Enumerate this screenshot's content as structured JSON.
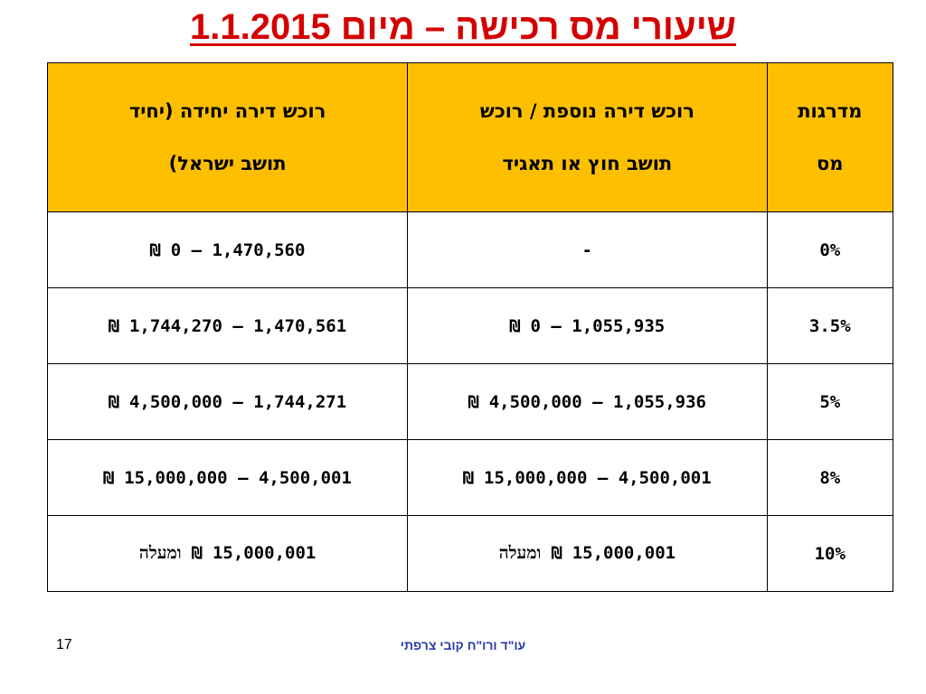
{
  "title": "שיעורי מס רכישה – מיום 1.1.2015",
  "table": {
    "headers": {
      "resident_line1": "רוכש דירה יחידה (יחיד",
      "resident_line2": "תושב ישראל)",
      "additional_line1": "רוכש דירה נוספת / רוכש",
      "additional_line2": "תושב חוץ או תאגיד",
      "bracket_line1": "מדרגות",
      "bracket_line2": "מס"
    },
    "rows": [
      {
        "resident": "1,470,560 – 0 ₪",
        "additional": "-",
        "bracket": "0%"
      },
      {
        "resident": "1,470,561 – 1,744,270 ₪",
        "additional": "1,055,935 – 0 ₪",
        "bracket": "3.5%"
      },
      {
        "resident": "1,744,271 – 4,500,000 ₪",
        "additional": "1,055,936 – 4,500,000 ₪",
        "bracket": "5%"
      },
      {
        "resident": "4,500,001 – 15,000,000 ₪",
        "additional": "4,500,001 – 15,000,000 ₪",
        "bracket": "8%"
      },
      {
        "resident": "15,000,001 ₪ ומעלה",
        "additional": "15,000,001 ₪ ומעלה",
        "bracket": "10%"
      }
    ]
  },
  "footer": {
    "author": "עו\"ד ורו\"ח קובי צרפתי",
    "page_number": "17"
  },
  "colors": {
    "title": "#d40000",
    "header_fill": "#fdbf00",
    "footer_text": "#2a3ba8"
  }
}
